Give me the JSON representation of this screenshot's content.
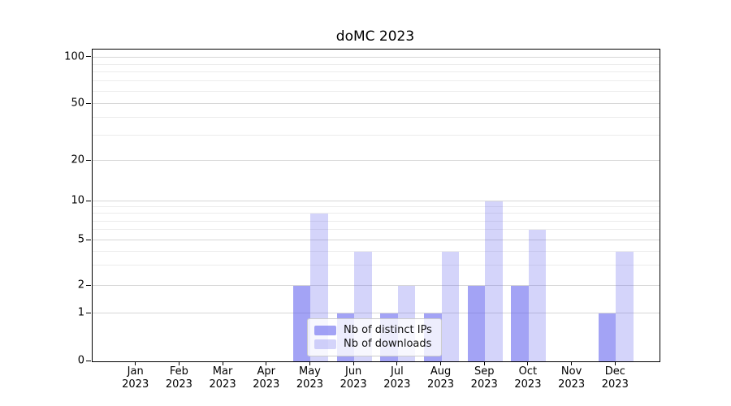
{
  "chart_data": {
    "type": "bar",
    "title": "doMC 2023",
    "categories": [
      "Jan",
      "Feb",
      "Mar",
      "Apr",
      "May",
      "Jun",
      "Jul",
      "Aug",
      "Sep",
      "Oct",
      "Nov",
      "Dec"
    ],
    "category_year": "2023",
    "series": [
      {
        "name": "Nb of distinct IPs",
        "color": "#6666ee",
        "opacity": 0.6,
        "values": [
          0,
          0,
          0,
          0,
          2,
          1,
          1,
          1,
          2,
          2,
          0,
          1
        ]
      },
      {
        "name": "Nb of downloads",
        "color": "#6666ee",
        "opacity": 0.28,
        "values": [
          0,
          0,
          0,
          0,
          8,
          4,
          2,
          4,
          10,
          6,
          0,
          4
        ]
      }
    ],
    "y_axis": {
      "ticks": [
        0,
        1,
        2,
        5,
        10,
        20,
        50,
        100
      ],
      "minor_gridlines": [
        3,
        4,
        6,
        7,
        8,
        9,
        30,
        40,
        60,
        70,
        80,
        90
      ],
      "scale": "log-with-zero"
    },
    "legend_position": "lower center",
    "grid": true
  },
  "colors": {
    "grid_major": "#d6d6d6",
    "grid_minor": "#ececec",
    "spine": "#000000",
    "text": "#000000"
  }
}
